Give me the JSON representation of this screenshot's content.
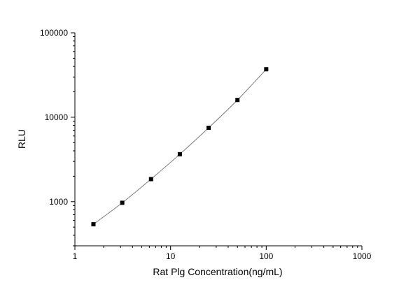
{
  "chart_data": {
    "type": "scatter",
    "title": "",
    "xlabel": "Rat Plg Concentration(ng/mL)",
    "ylabel": "RLU",
    "xscale": "log",
    "yscale": "log",
    "xlim": [
      1,
      1000
    ],
    "ylim": [
      300,
      100000
    ],
    "xticks": [
      1,
      10,
      100,
      1000
    ],
    "xtick_labels": [
      "1",
      "10",
      "100",
      "1000"
    ],
    "yticks": [
      1000,
      10000,
      100000
    ],
    "ytick_labels": [
      "1000",
      "10000",
      "100000"
    ],
    "grid": false,
    "legend": "none",
    "fit_curve": true,
    "series": [
      {
        "x": [
          1.5625,
          3.125,
          6.25,
          12.5,
          25,
          50,
          100
        ],
        "y": [
          540,
          970,
          1850,
          3650,
          7500,
          16000,
          37000
        ]
      }
    ],
    "colors": {
      "points": "#000000",
      "curve": "#7a7a7a",
      "axes": "#000000"
    }
  }
}
